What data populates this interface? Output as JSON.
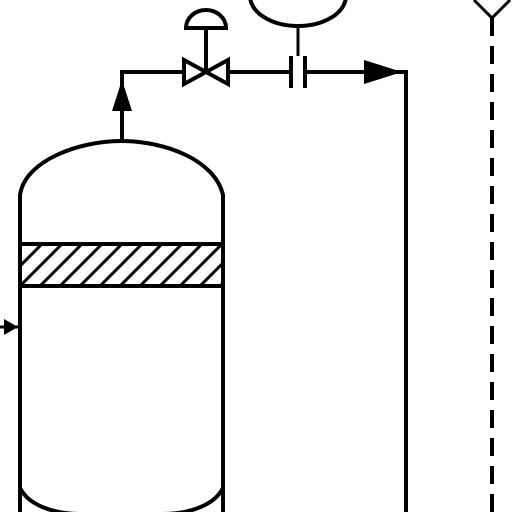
{
  "diagram": {
    "kind": "process-and-instrumentation",
    "colors": {
      "line": "#000000",
      "background": "#ffffff"
    },
    "components": [
      {
        "id": "vessel",
        "icon": "pressure-vessel-icon"
      },
      {
        "id": "packed-bed",
        "icon": "hatched-packing-icon"
      },
      {
        "id": "control-valve",
        "icon": "diaphragm-control-valve-icon"
      },
      {
        "id": "orifice",
        "icon": "orifice-plate-icon"
      },
      {
        "id": "instrument",
        "icon": "instrument-bubble-icon"
      },
      {
        "id": "signal-line",
        "icon": "dashed-signal-line-icon"
      }
    ]
  }
}
